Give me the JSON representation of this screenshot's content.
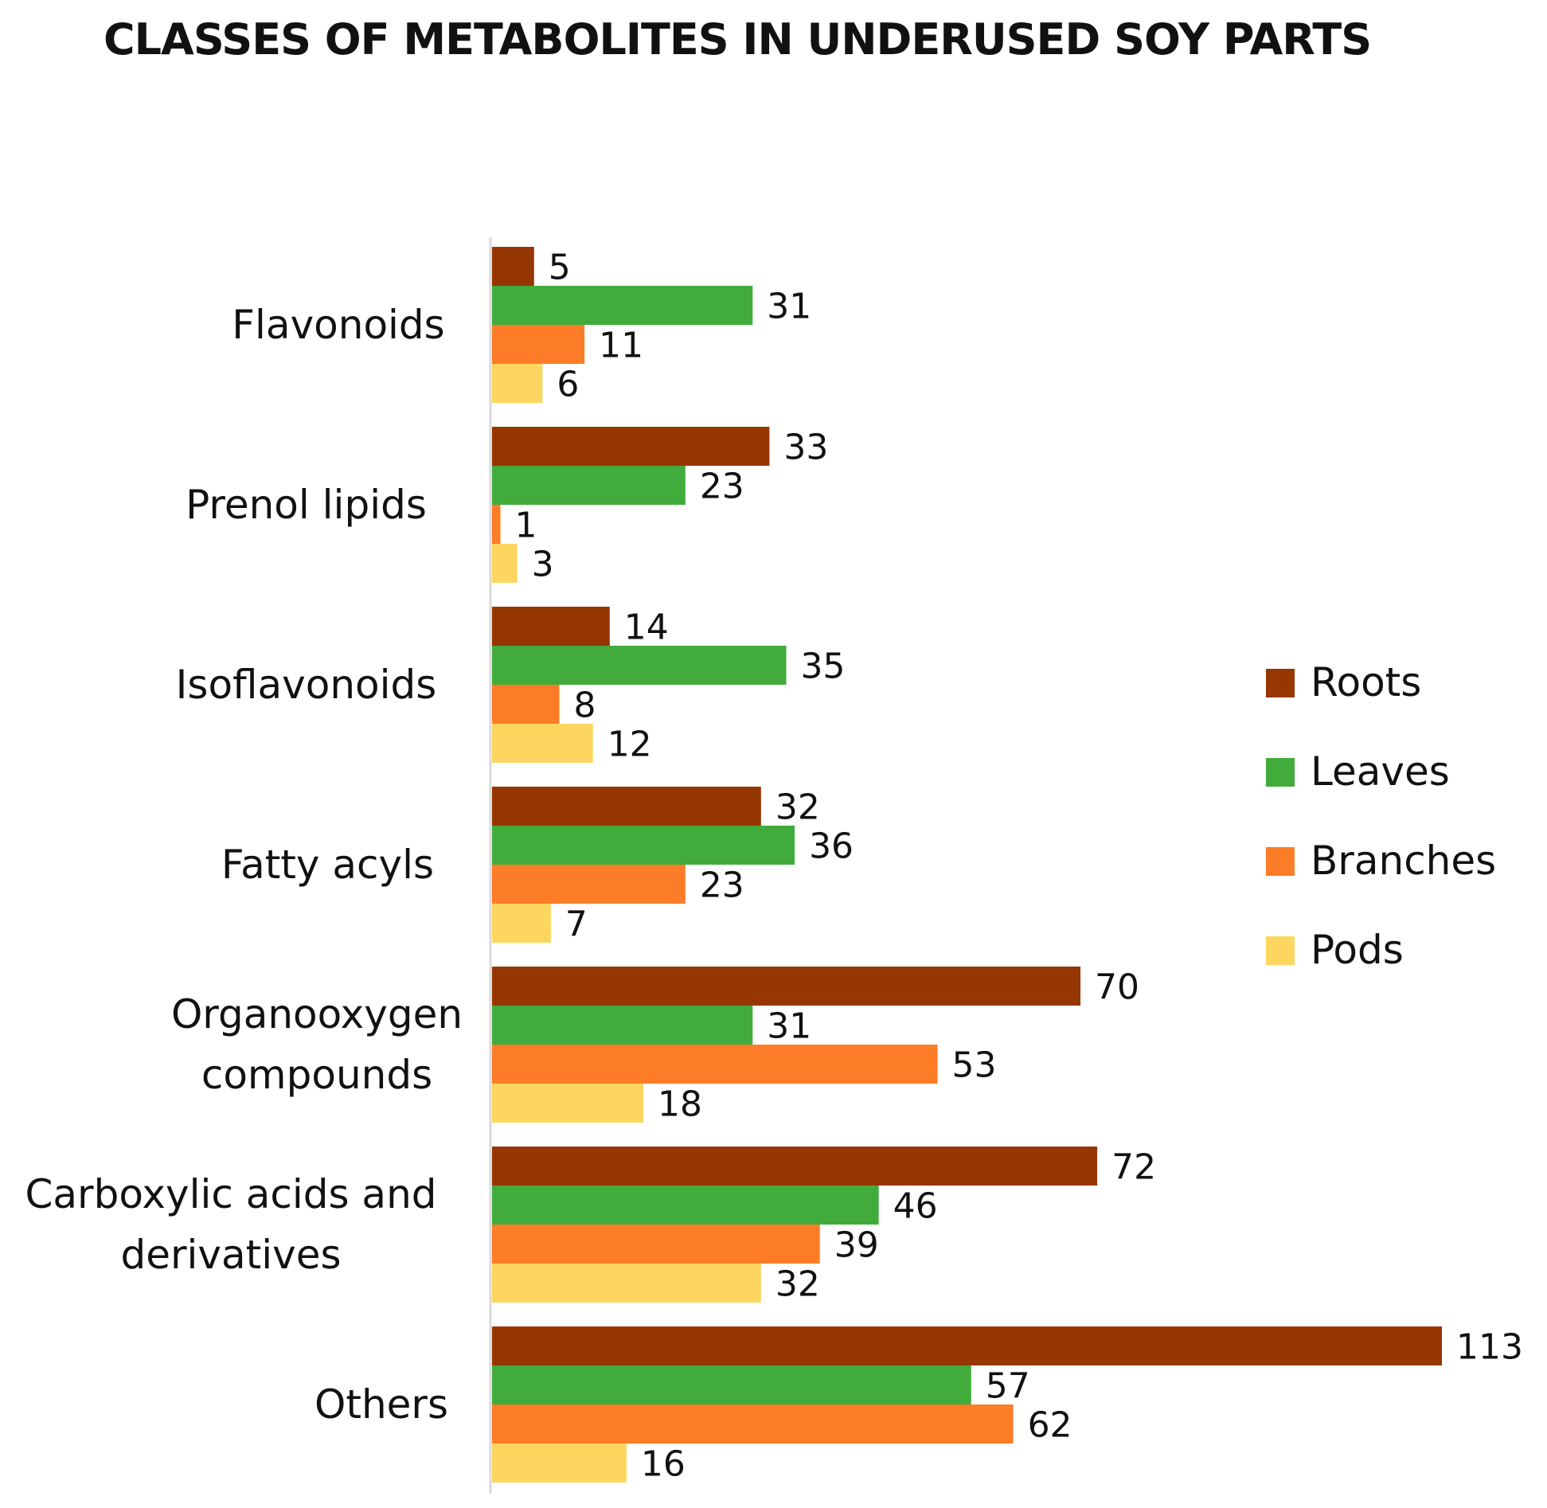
{
  "chart_data": {
    "type": "bar",
    "orientation": "horizontal",
    "title": "CLASSES OF METABOLITES IN UNDERUSED SOY PARTS",
    "categories": [
      [
        "Flavonoids"
      ],
      [
        "Prenol lipids"
      ],
      [
        "Isoflavonoids"
      ],
      [
        "Fatty acyls"
      ],
      [
        "Organooxygen",
        "compounds"
      ],
      [
        "Carboxylic acids and",
        "derivatives"
      ],
      [
        "Others"
      ]
    ],
    "series": [
      {
        "name": "Roots",
        "color": "#963600",
        "values": [
          5,
          33,
          14,
          32,
          70,
          72,
          113
        ]
      },
      {
        "name": "Leaves",
        "color": "#41ac3b",
        "values": [
          31,
          23,
          35,
          36,
          31,
          46,
          57
        ]
      },
      {
        "name": "Branches",
        "color": "#fc7c27",
        "values": [
          11,
          1,
          8,
          23,
          53,
          39,
          62
        ]
      },
      {
        "name": "Pods",
        "color": "#fdd660",
        "values": [
          6,
          3,
          12,
          7,
          18,
          32,
          16
        ]
      }
    ],
    "xlim": [
      0,
      113
    ],
    "grid": false,
    "data_labels": true,
    "legend_position": "right"
  }
}
